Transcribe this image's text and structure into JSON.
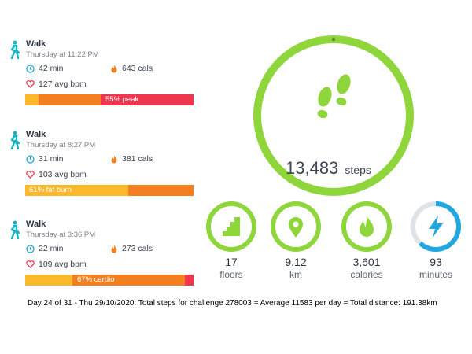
{
  "colors": {
    "green": "#8fd63c",
    "blue": "#22a7e0",
    "yellow": "#fbb82a",
    "orange": "#f47f20",
    "red": "#f0364f",
    "icon_teal": "#17b3c0"
  },
  "activities": [
    {
      "title": "Walk",
      "time": "Thursday at 11:22 PM",
      "minutes": "42 min",
      "calories": "643 cals",
      "heart": "127 avg bpm",
      "zone_label": "55% peak",
      "zones": [
        0.08,
        0.37,
        0.55
      ]
    },
    {
      "title": "Walk",
      "time": "Thursday at 8:27 PM",
      "minutes": "31 min",
      "calories": "381 cals",
      "heart": "103 avg bpm",
      "zone_label": "61% fat burn",
      "zones": [
        0.61,
        0.39,
        0
      ]
    },
    {
      "title": "Walk",
      "time": "Thursday at 3:36 PM",
      "minutes": "22 min",
      "calories": "273 cals",
      "heart": "109 avg bpm",
      "zone_label": "67% cardio",
      "zones": [
        0.28,
        0.67,
        0.05
      ]
    }
  ],
  "steps": {
    "value": "13,483",
    "unit": "steps",
    "progress": 1.0
  },
  "metrics": [
    {
      "value": "17",
      "unit": "floors",
      "icon": "stairs-icon",
      "progress": 1.0
    },
    {
      "value": "9.12",
      "unit": "km",
      "icon": "location-pin-icon",
      "progress": 1.0
    },
    {
      "value": "3,601",
      "unit": "calories",
      "icon": "flame-icon",
      "progress": 1.0
    },
    {
      "value": "93",
      "unit": "minutes",
      "icon": "lightning-icon",
      "progress": 0.62
    }
  ],
  "summary": "Day 24 of 31 - Thu 29/10/2020:  Total steps for challenge 278003 = Average 11583 per day = Total distance: 191.38km"
}
